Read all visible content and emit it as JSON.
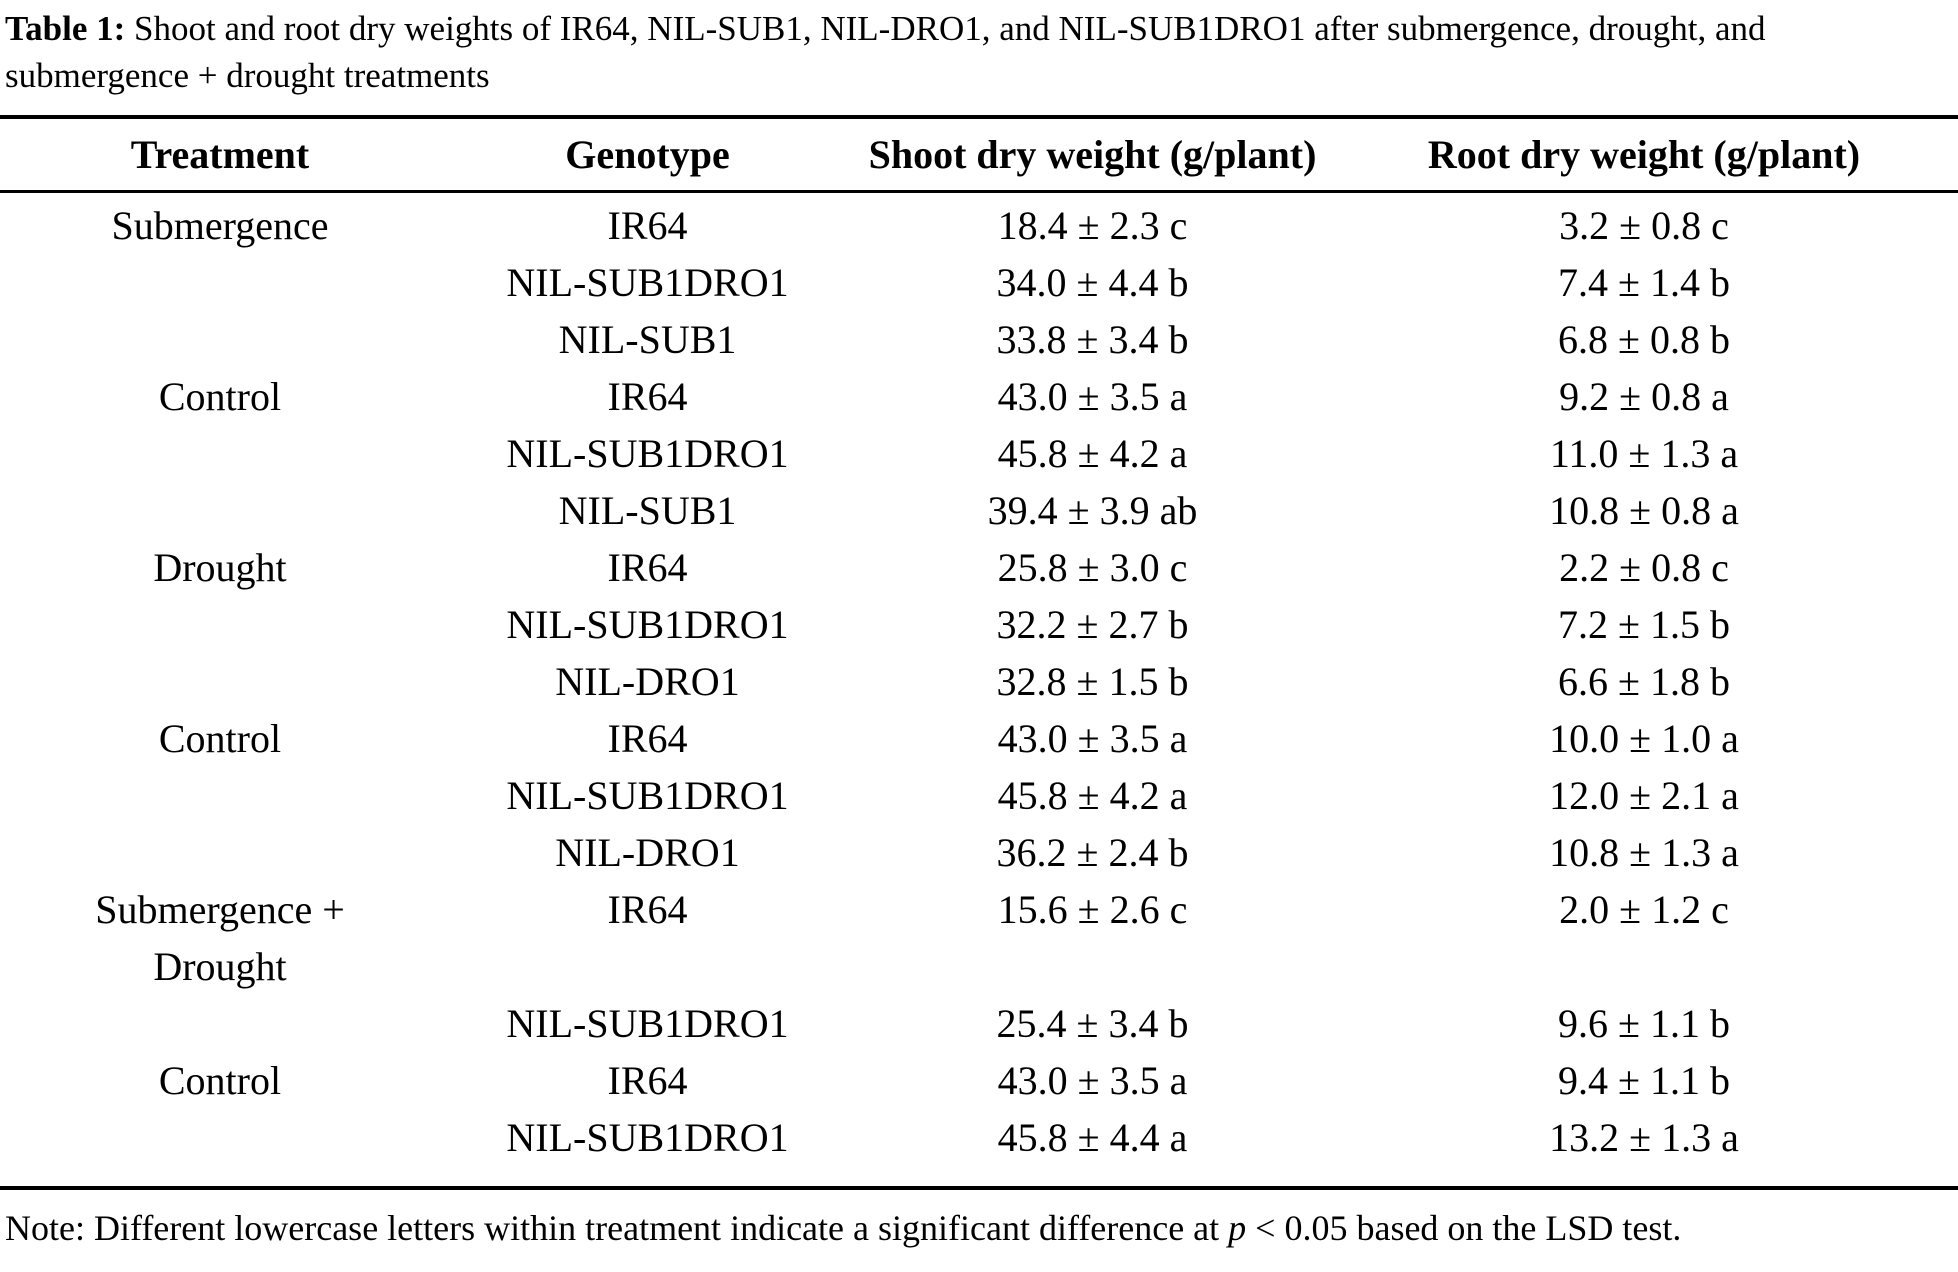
{
  "colors": {
    "text": "#000000",
    "background": "#ffffff",
    "rule": "#000000"
  },
  "caption": {
    "label": "Table 1:",
    "text": " Shoot and root dry weights of IR64, NIL-SUB1, NIL-DRO1, and NIL-SUB1DRO1 after submergence, drought, and submergence + drought treatments"
  },
  "table": {
    "headers": [
      "Treatment",
      "Genotype",
      "Shoot dry weight (g/plant)",
      "Root dry weight (g/plant)"
    ],
    "rows": [
      [
        "Submergence",
        "IR64",
        "18.4 ± 2.3 c",
        "3.2 ± 0.8 c"
      ],
      [
        "",
        "NIL-SUB1DRO1",
        "34.0 ± 4.4 b",
        "7.4 ± 1.4 b"
      ],
      [
        "",
        "NIL-SUB1",
        "33.8 ± 3.4 b",
        "6.8 ± 0.8 b"
      ],
      [
        "Control",
        "IR64",
        "43.0 ± 3.5 a",
        "9.2 ± 0.8 a"
      ],
      [
        "",
        "NIL-SUB1DRO1",
        "45.8 ± 4.2 a",
        "11.0 ± 1.3 a"
      ],
      [
        "",
        "NIL-SUB1",
        "39.4 ± 3.9 ab",
        "10.8 ± 0.8 a"
      ],
      [
        "Drought",
        "IR64",
        "25.8 ± 3.0 c",
        "2.2 ± 0.8 c"
      ],
      [
        "",
        "NIL-SUB1DRO1",
        "32.2 ± 2.7 b",
        "7.2 ± 1.5 b"
      ],
      [
        "",
        "NIL-DRO1",
        "32.8 ± 1.5 b",
        "6.6 ± 1.8 b"
      ],
      [
        "Control",
        "IR64",
        "43.0 ± 3.5 a",
        "10.0 ± 1.0 a"
      ],
      [
        "",
        "NIL-SUB1DRO1",
        "45.8 ± 4.2 a",
        "12.0 ± 2.1 a"
      ],
      [
        "",
        "NIL-DRO1",
        "36.2 ± 2.4 b",
        "10.8 ± 1.3 a"
      ],
      [
        [
          "Submergence +",
          "Drought"
        ],
        "IR64",
        "15.6 ± 2.6 c",
        "2.0 ± 1.2 c"
      ],
      [
        "",
        "NIL-SUB1DRO1",
        "25.4 ± 3.4 b",
        "9.6 ± 1.1 b"
      ],
      [
        "Control",
        "IR64",
        "43.0 ± 3.5 a",
        "9.4 ± 1.1 b"
      ],
      [
        "",
        "NIL-SUB1DRO1",
        "45.8 ± 4.4 a",
        "13.2 ± 1.3 a"
      ]
    ]
  },
  "note": {
    "prefix": "Note: Different lowercase letters within treatment indicate a significant difference at ",
    "italic": "p",
    "suffix": " < 0.05 based on the LSD test."
  },
  "chart_data": {
    "type": "table",
    "title": "Table 1: Shoot and root dry weights of IR64, NIL-SUB1, NIL-DRO1, and NIL-SUB1DRO1 after submergence, drought, and submergence + drought treatments",
    "columns": [
      "Treatment",
      "Genotype",
      "Shoot dry weight (g/plant)",
      "Root dry weight (g/plant)"
    ],
    "rows": [
      {
        "treatment": "Submergence",
        "genotype": "IR64",
        "shoot_mean": 18.4,
        "shoot_sd": 2.3,
        "shoot_group": "c",
        "root_mean": 3.2,
        "root_sd": 0.8,
        "root_group": "c"
      },
      {
        "treatment": "Submergence",
        "genotype": "NIL-SUB1DRO1",
        "shoot_mean": 34.0,
        "shoot_sd": 4.4,
        "shoot_group": "b",
        "root_mean": 7.4,
        "root_sd": 1.4,
        "root_group": "b"
      },
      {
        "treatment": "Submergence",
        "genotype": "NIL-SUB1",
        "shoot_mean": 33.8,
        "shoot_sd": 3.4,
        "shoot_group": "b",
        "root_mean": 6.8,
        "root_sd": 0.8,
        "root_group": "b"
      },
      {
        "treatment": "Control",
        "genotype": "IR64",
        "shoot_mean": 43.0,
        "shoot_sd": 3.5,
        "shoot_group": "a",
        "root_mean": 9.2,
        "root_sd": 0.8,
        "root_group": "a"
      },
      {
        "treatment": "Control",
        "genotype": "NIL-SUB1DRO1",
        "shoot_mean": 45.8,
        "shoot_sd": 4.2,
        "shoot_group": "a",
        "root_mean": 11.0,
        "root_sd": 1.3,
        "root_group": "a"
      },
      {
        "treatment": "Control",
        "genotype": "NIL-SUB1",
        "shoot_mean": 39.4,
        "shoot_sd": 3.9,
        "shoot_group": "ab",
        "root_mean": 10.8,
        "root_sd": 0.8,
        "root_group": "a"
      },
      {
        "treatment": "Drought",
        "genotype": "IR64",
        "shoot_mean": 25.8,
        "shoot_sd": 3.0,
        "shoot_group": "c",
        "root_mean": 2.2,
        "root_sd": 0.8,
        "root_group": "c"
      },
      {
        "treatment": "Drought",
        "genotype": "NIL-SUB1DRO1",
        "shoot_mean": 32.2,
        "shoot_sd": 2.7,
        "shoot_group": "b",
        "root_mean": 7.2,
        "root_sd": 1.5,
        "root_group": "b"
      },
      {
        "treatment": "Drought",
        "genotype": "NIL-DRO1",
        "shoot_mean": 32.8,
        "shoot_sd": 1.5,
        "shoot_group": "b",
        "root_mean": 6.6,
        "root_sd": 1.8,
        "root_group": "b"
      },
      {
        "treatment": "Control",
        "genotype": "IR64",
        "shoot_mean": 43.0,
        "shoot_sd": 3.5,
        "shoot_group": "a",
        "root_mean": 10.0,
        "root_sd": 1.0,
        "root_group": "a"
      },
      {
        "treatment": "Control",
        "genotype": "NIL-SUB1DRO1",
        "shoot_mean": 45.8,
        "shoot_sd": 4.2,
        "shoot_group": "a",
        "root_mean": 12.0,
        "root_sd": 2.1,
        "root_group": "a"
      },
      {
        "treatment": "Control",
        "genotype": "NIL-DRO1",
        "shoot_mean": 36.2,
        "shoot_sd": 2.4,
        "shoot_group": "b",
        "root_mean": 10.8,
        "root_sd": 1.3,
        "root_group": "a"
      },
      {
        "treatment": "Submergence + Drought",
        "genotype": "IR64",
        "shoot_mean": 15.6,
        "shoot_sd": 2.6,
        "shoot_group": "c",
        "root_mean": 2.0,
        "root_sd": 1.2,
        "root_group": "c"
      },
      {
        "treatment": "Submergence + Drought",
        "genotype": "NIL-SUB1DRO1",
        "shoot_mean": 25.4,
        "shoot_sd": 3.4,
        "shoot_group": "b",
        "root_mean": 9.6,
        "root_sd": 1.1,
        "root_group": "b"
      },
      {
        "treatment": "Control",
        "genotype": "IR64",
        "shoot_mean": 43.0,
        "shoot_sd": 3.5,
        "shoot_group": "a",
        "root_mean": 9.4,
        "root_sd": 1.1,
        "root_group": "b"
      },
      {
        "treatment": "Control",
        "genotype": "NIL-SUB1DRO1",
        "shoot_mean": 45.8,
        "shoot_sd": 4.4,
        "shoot_group": "a",
        "root_mean": 13.2,
        "root_sd": 1.3,
        "root_group": "a"
      }
    ],
    "note": "Note: Different lowercase letters within treatment indicate a significant difference at p < 0.05 based on the LSD test."
  }
}
